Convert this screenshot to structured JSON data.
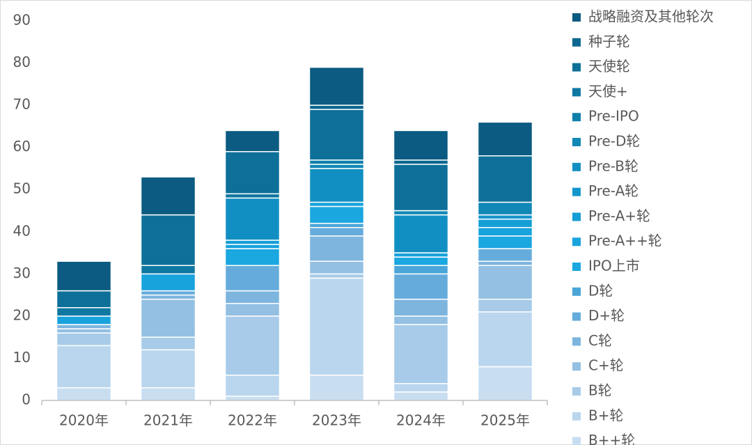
{
  "chart_data": {
    "type": "stacked_bar",
    "categories": [
      "2020年",
      "2021年",
      "2022年",
      "2023年",
      "2024年",
      "2025年"
    ],
    "series": [
      {
        "name": "战略融资及其他轮次",
        "color": "#0b5b82",
        "values": [
          7,
          9,
          5,
          9,
          7,
          8
        ]
      },
      {
        "name": "种子轮",
        "color": "#0c6890",
        "values": [
          0,
          0,
          0,
          1,
          1,
          0
        ]
      },
      {
        "name": "天使轮",
        "color": "#0e7099",
        "values": [
          4,
          12,
          10,
          12,
          11,
          11
        ]
      },
      {
        "name": "天使+",
        "color": "#0f78a2",
        "values": [
          2,
          2,
          1,
          0,
          0,
          0
        ]
      },
      {
        "name": "Pre-IPO",
        "color": "#1080ab",
        "values": [
          0,
          0,
          0,
          1,
          0,
          0
        ]
      },
      {
        "name": "Pre-D轮",
        "color": "#1188b6",
        "values": [
          0,
          0,
          0,
          1,
          1,
          3
        ]
      },
      {
        "name": "Pre-B轮",
        "color": "#128fc2",
        "values": [
          0,
          0,
          10,
          8,
          9,
          0
        ]
      },
      {
        "name": "Pre-A轮",
        "color": "#1496cc",
        "values": [
          0,
          0,
          0,
          0,
          0,
          1
        ]
      },
      {
        "name": "Pre-A+轮",
        "color": "#169ed6",
        "values": [
          0,
          0,
          1,
          0,
          0,
          2
        ]
      },
      {
        "name": "Pre-A++轮",
        "color": "#18a3dd",
        "values": [
          2,
          4,
          1,
          1,
          1,
          2
        ]
      },
      {
        "name": "IPO上市",
        "color": "#1ba7e0",
        "values": [
          0,
          0,
          4,
          4,
          2,
          3
        ]
      },
      {
        "name": "D轮",
        "color": "#4aa6d8",
        "values": [
          0,
          0,
          0,
          1,
          2,
          0
        ]
      },
      {
        "name": "D+轮",
        "color": "#65acdc",
        "values": [
          0,
          1,
          6,
          2,
          6,
          3
        ]
      },
      {
        "name": "C轮",
        "color": "#7db5df",
        "values": [
          1,
          1,
          3,
          6,
          4,
          1
        ]
      },
      {
        "name": "C+轮",
        "color": "#93c0e3",
        "values": [
          1,
          9,
          3,
          3,
          2,
          8
        ]
      },
      {
        "name": "B轮",
        "color": "#a7cbe8",
        "values": [
          3,
          3,
          14,
          1,
          14,
          3
        ]
      },
      {
        "name": "B+轮",
        "color": "#bad6ee",
        "values": [
          10,
          9,
          5,
          23,
          2,
          13
        ]
      },
      {
        "name": "B++轮",
        "color": "#c8ddf0",
        "values": [
          3,
          3,
          1,
          6,
          2,
          8
        ]
      }
    ],
    "ylim": [
      0,
      90
    ],
    "yticks": [
      0,
      10,
      20,
      30,
      40,
      50,
      60,
      70,
      80,
      90
    ],
    "grid": false
  }
}
